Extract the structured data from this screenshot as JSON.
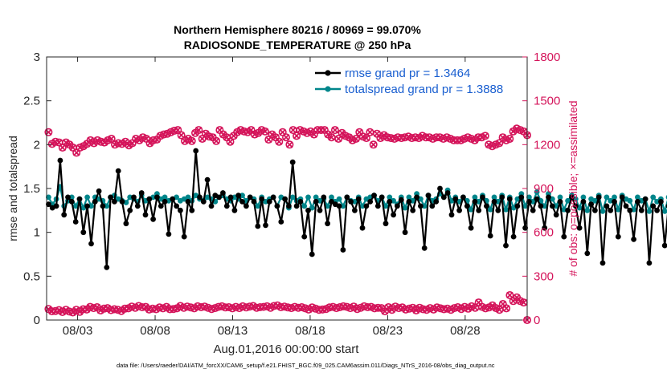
{
  "colors": {
    "rmse": "#000000",
    "totalspread": "#00868b",
    "obs": "#d4145a"
  },
  "chart_data": {
    "type": "line",
    "title_line1": "Northern Hemisphere 80216 / 80969 = 99.070%",
    "title_line2": "RADIOSONDE_TEMPERATURE @ 250 hPa",
    "xlabel": "Aug.01,2016 00:00:00 start",
    "ylabel": "rmse and totalspread",
    "ylabel_right": "# of obs: o=possible; ×=assimilated",
    "xlim": [
      1,
      32
    ],
    "ylim": [
      0,
      3
    ],
    "ylim_right": [
      0,
      1800
    ],
    "x_ticks": [
      3,
      8,
      13,
      18,
      23,
      28
    ],
    "x_tick_labels": [
      "08/03",
      "08/08",
      "08/13",
      "08/18",
      "08/23",
      "08/28"
    ],
    "y_ticks": [
      0,
      0.5,
      1,
      1.5,
      2,
      2.5,
      3
    ],
    "y_tick_labels": [
      "0",
      "0.5",
      "1",
      "1.5",
      "2",
      "2.5",
      "3"
    ],
    "y_right_ticks": [
      0,
      300,
      600,
      900,
      1200,
      1500,
      1800
    ],
    "y_right_tick_labels": [
      "0",
      "300",
      "600",
      "900",
      "1200",
      "1500",
      "1800"
    ],
    "x_step_days": 0.25,
    "series": [
      {
        "name": "rmse grand pr = 1.3464",
        "axis": "left",
        "values": [
          1.32,
          1.28,
          1.3,
          1.82,
          1.2,
          1.4,
          1.35,
          1.12,
          1.38,
          1.0,
          1.3,
          0.87,
          1.35,
          1.47,
          1.3,
          0.6,
          1.4,
          1.35,
          1.7,
          1.35,
          1.1,
          1.25,
          1.4,
          1.3,
          1.45,
          1.2,
          1.38,
          1.15,
          1.4,
          1.3,
          1.35,
          0.98,
          1.38,
          1.3,
          1.25,
          0.95,
          1.35,
          1.25,
          1.93,
          1.4,
          1.35,
          1.6,
          1.3,
          1.42,
          1.4,
          1.45,
          1.3,
          1.4,
          1.25,
          1.42,
          1.35,
          1.3,
          1.4,
          1.35,
          1.07,
          1.38,
          1.08,
          1.35,
          1.4,
          1.3,
          1.12,
          1.38,
          1.3,
          1.8,
          1.3,
          1.35,
          0.95,
          1.25,
          0.75,
          1.35,
          1.25,
          1.4,
          1.1,
          1.35,
          1.32,
          1.3,
          0.8,
          1.4,
          1.35,
          1.25,
          1.38,
          1.05,
          1.3,
          1.35,
          1.42,
          1.3,
          1.4,
          1.1,
          1.35,
          1.2,
          1.3,
          1.37,
          1.0,
          1.35,
          1.25,
          1.4,
          1.3,
          0.82,
          1.42,
          1.3,
          1.35,
          1.5,
          1.4,
          1.45,
          1.2,
          1.38,
          1.25,
          1.4,
          1.3,
          1.05,
          1.35,
          1.25,
          1.4,
          1.3,
          0.96,
          1.35,
          1.25,
          1.4,
          0.85,
          1.38,
          0.95,
          1.3,
          1.4,
          1.05,
          1.35,
          1.25,
          1.38,
          1.3,
          1.05,
          1.4,
          1.3,
          1.2,
          1.35,
          0.95,
          1.25,
          1.4,
          1.3,
          1.05,
          1.35,
          0.76,
          1.32,
          1.25,
          1.4,
          0.65,
          1.3,
          1.25,
          1.35,
          0.95,
          1.4,
          1.3,
          1.25,
          0.92,
          1.35,
          1.25,
          1.38,
          0.65,
          1.3,
          1.25,
          1.35,
          0.85,
          1.3,
          1.25,
          1.4,
          0.75,
          1.3,
          1.25,
          1.38,
          0.7,
          1.35,
          1.25,
          0.57
        ]
      },
      {
        "name": "totalspread grand pr = 1.3888",
        "axis": "left",
        "values": [
          1.4,
          1.32,
          1.38,
          1.52,
          1.3,
          1.36,
          1.4,
          1.3,
          1.38,
          1.28,
          1.4,
          1.3,
          1.4,
          1.38,
          1.36,
          1.3,
          1.4,
          1.42,
          1.38,
          1.36,
          1.34,
          1.4,
          1.38,
          1.35,
          1.42,
          1.36,
          1.38,
          1.4,
          1.44,
          1.38,
          1.4,
          1.36,
          1.38,
          1.4,
          1.36,
          1.38,
          1.4,
          1.36,
          1.42,
          1.38,
          1.36,
          1.4,
          1.38,
          1.35,
          1.4,
          1.42,
          1.38,
          1.36,
          1.4,
          1.38,
          1.42,
          1.36,
          1.4,
          1.38,
          1.3,
          1.4,
          1.35,
          1.38,
          1.4,
          1.3,
          1.4,
          1.38,
          1.28,
          1.4,
          1.36,
          1.38,
          1.3,
          1.4,
          1.28,
          1.4,
          1.36,
          1.38,
          1.3,
          1.4,
          1.35,
          1.38,
          1.3,
          1.4,
          1.36,
          1.35,
          1.4,
          1.3,
          1.38,
          1.4,
          1.42,
          1.36,
          1.4,
          1.3,
          1.4,
          1.36,
          1.32,
          1.4,
          1.28,
          1.4,
          1.36,
          1.44,
          1.38,
          1.3,
          1.42,
          1.36,
          1.38,
          1.44,
          1.4,
          1.48,
          1.36,
          1.4,
          1.35,
          1.4,
          1.36,
          1.26,
          1.4,
          1.35,
          1.42,
          1.36,
          1.26,
          1.4,
          1.35,
          1.42,
          1.26,
          1.4,
          1.28,
          1.38,
          1.44,
          1.3,
          1.4,
          1.35,
          1.46,
          1.36,
          1.3,
          1.44,
          1.38,
          1.3,
          1.4,
          1.26,
          1.36,
          1.42,
          1.38,
          1.28,
          1.4,
          1.25,
          1.38,
          1.36,
          1.42,
          1.24,
          1.4,
          1.36,
          1.4,
          1.26,
          1.42,
          1.38,
          1.36,
          1.26,
          1.4,
          1.36,
          1.38,
          1.24,
          1.4,
          1.35,
          1.38,
          1.24,
          1.4,
          1.36,
          1.42,
          1.24,
          1.4,
          1.36,
          1.4,
          1.24,
          1.42,
          1.36,
          1.24
        ]
      },
      {
        "name": "possible obs",
        "axis": "right",
        "values": [
          1285,
          1205,
          1220,
          1215,
          1180,
          1215,
          1200,
          1180,
          1145,
          1180,
          1190,
          1205,
          1230,
          1210,
          1230,
          1220,
          1215,
          1230,
          1240,
          1200,
          1210,
          1205,
          1220,
          1195,
          1210,
          1240,
          1230,
          1250,
          1240,
          1210,
          1230,
          1235,
          1260,
          1270,
          1275,
          1285,
          1295,
          1300,
          1265,
          1225,
          1240,
          1225,
          1280,
          1300,
          1240,
          1275,
          1255,
          1250,
          1225,
          1300,
          1270,
          1250,
          1220,
          1260,
          1285,
          1300,
          1290,
          1285,
          1300,
          1270,
          1280,
          1300,
          1290,
          1235,
          1270,
          1250,
          1220,
          1285,
          1250,
          1200,
          1300,
          1260,
          1300,
          1290,
          1280,
          1290,
          1270,
          1300,
          1300,
          1300,
          1270,
          1250,
          1300,
          1240,
          1280,
          1260,
          1250,
          1230,
          1240,
          1285,
          1255,
          1245,
          1285,
          1200,
          1275,
          1245,
          1265,
          1250,
          1245,
          1240,
          1250,
          1245,
          1250,
          1255,
          1245,
          1250,
          1245,
          1260,
          1250,
          1250,
          1240,
          1250,
          1250,
          1240,
          1250,
          1240,
          1230,
          1230,
          1230,
          1240,
          1250,
          1240,
          1230,
          1250,
          1250,
          1260,
          1200,
          1190,
          1200,
          1210,
          1250,
          1230,
          1240,
          1290,
          1310,
          1300,
          1290,
          1265
        ]
      },
      {
        "name": "assimilated obs",
        "axis": "right",
        "values": [
          75,
          60,
          62,
          68,
          55,
          70,
          58,
          52,
          70,
          56,
          74,
          72,
          90,
          82,
          88,
          66,
          78,
          82,
          68,
          74,
          70,
          62,
          78,
          80,
          92,
          84,
          96,
          88,
          90,
          72,
          78,
          74,
          86,
          80,
          90,
          74,
          76,
          80,
          96,
          84,
          92,
          86,
          80,
          94,
          88,
          92,
          84,
          76,
          82,
          90,
          94,
          86,
          88,
          80,
          90,
          82,
          94,
          86,
          92,
          96,
          84,
          88,
          90,
          94,
          84,
          96,
          100,
          88,
          92,
          86,
          82,
          90,
          84,
          88,
          80,
          72,
          86,
          78,
          70,
          72,
          76,
          86,
          90,
          82,
          88,
          94,
          90,
          82,
          92,
          76,
          84,
          94,
          88,
          90,
          80,
          84,
          82,
          60,
          88,
          70,
          92,
          82,
          86,
          72,
          78,
          84,
          66,
          84,
          74,
          70,
          82,
          72,
          86,
          80,
          74,
          78,
          70,
          82,
          88,
          76,
          90,
          78,
          94,
          84,
          120,
          90,
          80,
          86,
          100,
          82,
          70,
          110,
          80,
          170,
          130,
          155,
          130,
          120,
          0
        ]
      }
    ]
  },
  "footnote": "data file: /Users/raeder/DAI/ATM_forcXX/CAM6_setup/f.e21.FHIST_BGC.f09_025.CAM6assim.011/Diags_NTrS_2016-08/obs_diag_output.nc"
}
